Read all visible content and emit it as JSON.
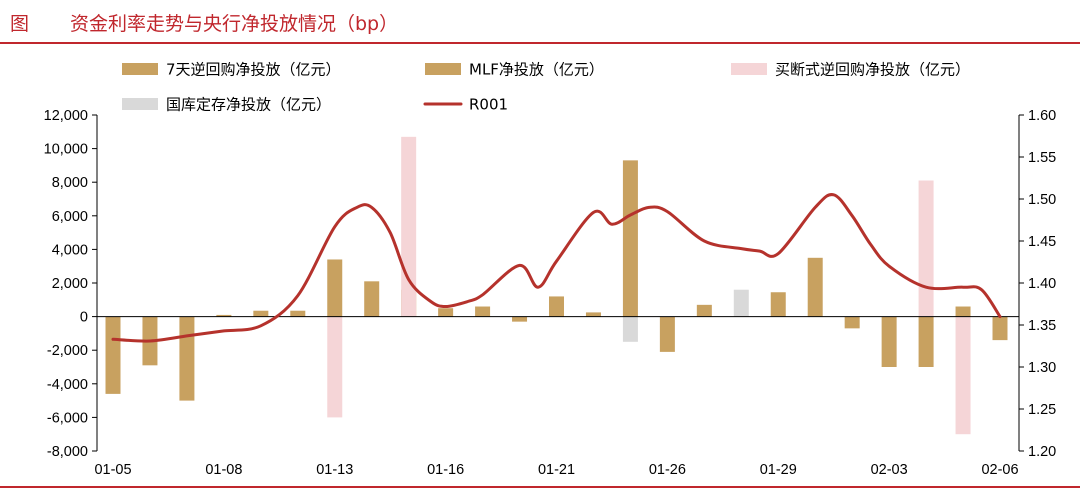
{
  "title": {
    "prefix": "图",
    "text": "资金利率走势与央行净投放情况（bp）"
  },
  "colors": {
    "title": "#c0272d",
    "reverse_repo_7d": "#c8a160",
    "mlf": "#c8a160",
    "outright_reverse_repo": "#f5d5d7",
    "treasury_deposit": "#d9d9d9",
    "r001": "#b5322c"
  },
  "chart_data": {
    "type": "bar",
    "x_ticks": [
      "01-05",
      "01-08",
      "01-13",
      "01-16",
      "01-21",
      "01-26",
      "01-29",
      "02-03",
      "02-06"
    ],
    "legend": {
      "placement": "top",
      "items": [
        {
          "name": "7天逆回购净投放（亿元）",
          "color": "#c8a160",
          "kind": "bar"
        },
        {
          "name": "MLF净投放（亿元）",
          "color": "#c8a160",
          "kind": "bar"
        },
        {
          "name": "买断式逆回购净投放（亿元）",
          "color": "#f5d5d7",
          "kind": "bar"
        },
        {
          "name": "国库定存净投放（亿元）",
          "color": "#d9d9d9",
          "kind": "bar"
        },
        {
          "name": "R001",
          "color": "#b5322c",
          "kind": "line"
        }
      ]
    },
    "y_left": {
      "ylim": [
        -8000,
        12000
      ],
      "ticks": [
        "-8,000",
        "-6,000",
        "-4,000",
        "-2,000",
        "0",
        "2,000",
        "4,000",
        "6,000",
        "8,000",
        "10,000",
        "12,000"
      ]
    },
    "y_right": {
      "ylim": [
        1.2,
        1.6
      ],
      "ticks": [
        "1.20",
        "1.25",
        "1.30",
        "1.35",
        "1.40",
        "1.45",
        "1.50",
        "1.55",
        "1.60"
      ]
    },
    "grid": false,
    "bar_series": [
      {
        "name": "7天逆回购净投放（亿元）",
        "color": "#c8a160",
        "values": [
          -4600,
          -2900,
          -5000,
          100,
          350,
          350,
          3400,
          2100,
          1600,
          500,
          600,
          -300,
          1200,
          250,
          9300,
          -2100,
          700,
          0,
          1450,
          3500,
          -700,
          -3000,
          -3000,
          600,
          -1400
        ]
      },
      {
        "name": "买断式逆回购净投放（亿元）",
        "color": "#f5d5d7",
        "values": [
          0,
          0,
          0,
          0,
          0,
          0,
          -6000,
          0,
          10700,
          0,
          0,
          0,
          0,
          0,
          0,
          0,
          0,
          0,
          0,
          0,
          0,
          0,
          8100,
          -7000,
          0
        ]
      },
      {
        "name": "国库定存净投放（亿元）",
        "color": "#d9d9d9",
        "values": [
          0,
          0,
          0,
          0,
          0,
          0,
          0,
          0,
          0,
          0,
          0,
          0,
          0,
          0,
          -1500,
          0,
          0,
          1600,
          0,
          0,
          0,
          0,
          0,
          0,
          0
        ]
      }
    ],
    "line_series": {
      "name": "R001",
      "color": "#b5322c",
      "x": [
        0,
        1,
        2,
        2.5,
        3,
        4,
        5,
        6,
        6.6,
        7,
        7.5,
        8,
        8.6,
        9,
        9.6,
        10,
        11,
        11.5,
        12,
        13,
        13.5,
        14,
        14.5,
        15,
        16,
        17,
        17.5,
        18,
        19,
        19.5,
        20,
        20.5,
        21,
        22,
        23,
        23.5,
        24
      ],
      "values": [
        1.333,
        1.331,
        1.337,
        1.34,
        1.343,
        1.349,
        1.385,
        1.467,
        1.49,
        1.49,
        1.46,
        1.404,
        1.378,
        1.372,
        1.378,
        1.386,
        1.421,
        1.395,
        1.426,
        1.484,
        1.47,
        1.481,
        1.49,
        1.485,
        1.45,
        1.441,
        1.438,
        1.435,
        1.49,
        1.505,
        1.48,
        1.446,
        1.42,
        1.395,
        1.395,
        1.392,
        1.36
      ]
    }
  }
}
